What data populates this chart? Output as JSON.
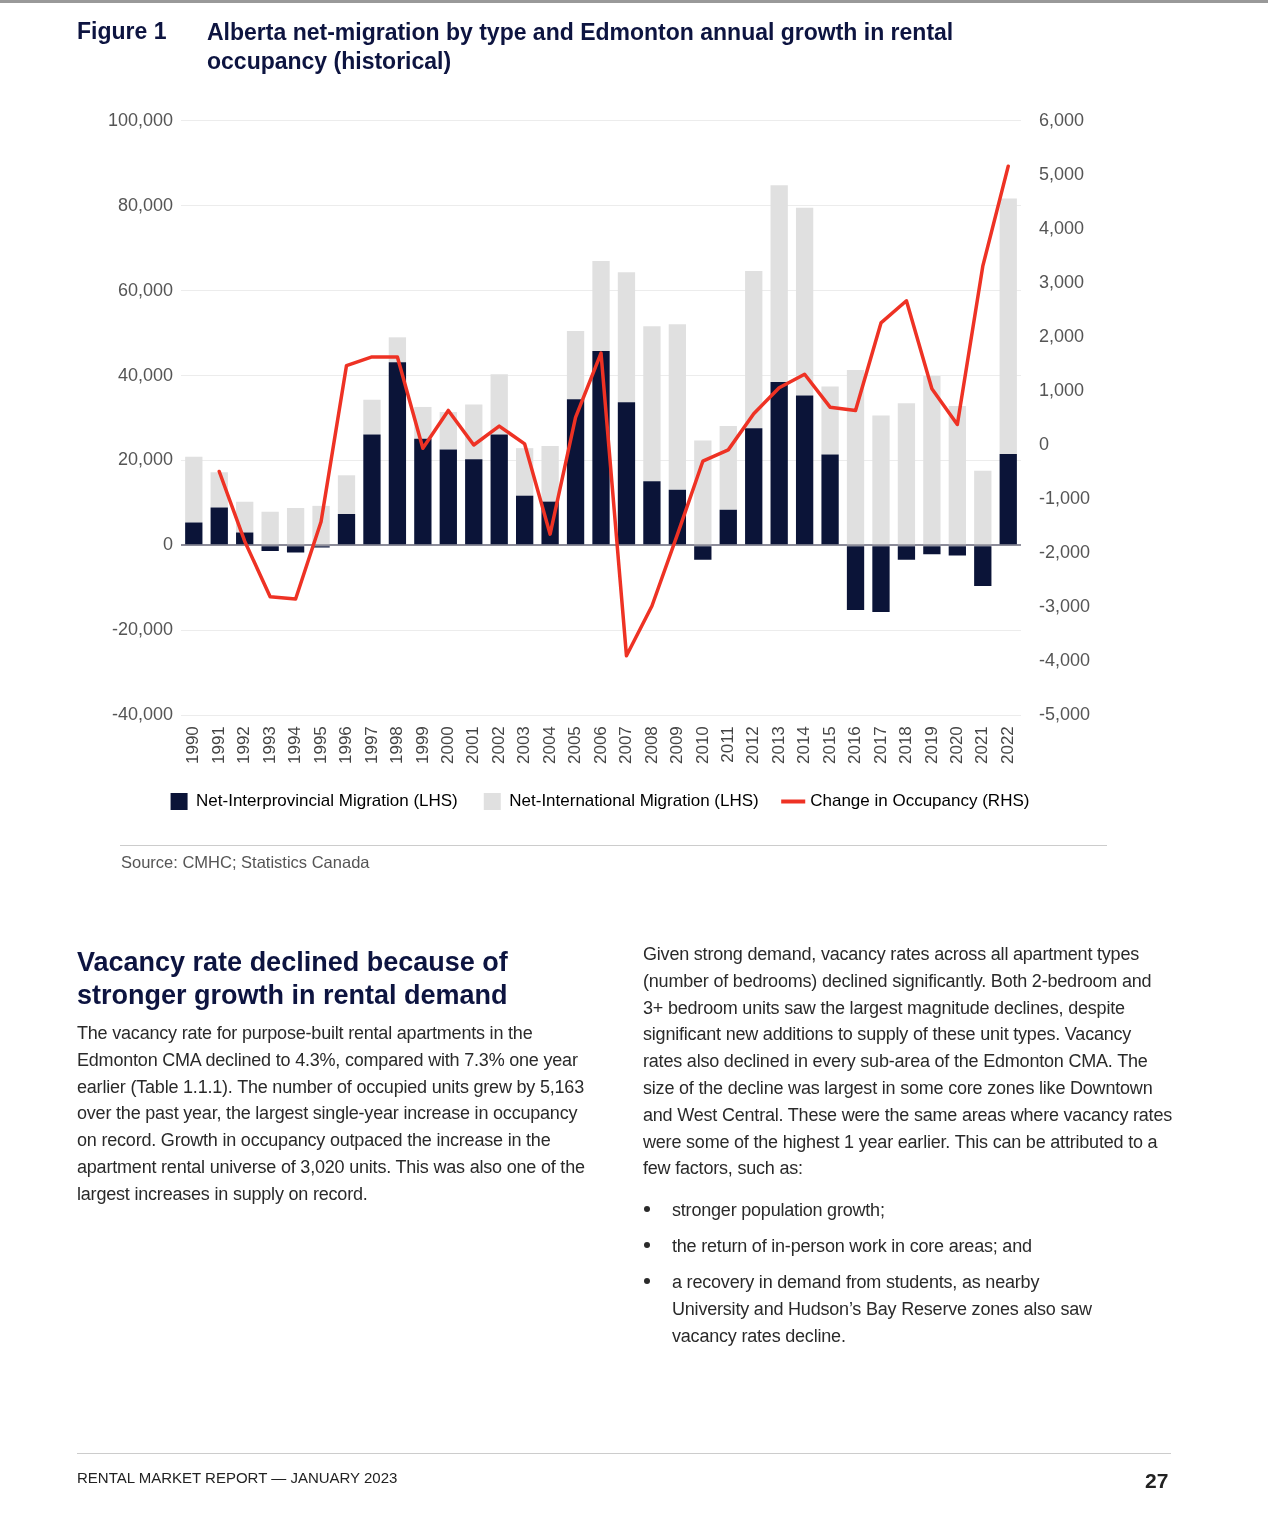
{
  "chart_data": {
    "type": "bar",
    "title": "Alberta net-migration by type and Edmonton annual growth in rental occupancy (historical)",
    "categories": [
      "1990",
      "1991",
      "1992",
      "1993",
      "1994",
      "1995",
      "1996",
      "1997",
      "1998",
      "1999",
      "2000",
      "2001",
      "2002",
      "2003",
      "2004",
      "2005",
      "2006",
      "2007",
      "2008",
      "2009",
      "2010",
      "2011",
      "2012",
      "2013",
      "2014",
      "2015",
      "2016",
      "2017",
      "2018",
      "2019",
      "2020",
      "2021",
      "2022"
    ],
    "stacked": true,
    "series": [
      {
        "name": "Net-Interprovincial Migration (LHS)",
        "color": "#0b1438",
        "values": [
          5400,
          8900,
          3000,
          -1300,
          -1700,
          -500,
          7400,
          26100,
          43100,
          25100,
          22600,
          20300,
          26100,
          11700,
          10300,
          34400,
          45800,
          33700,
          15100,
          13100,
          -3400,
          8400,
          27600,
          38500,
          35300,
          21400,
          -15200,
          -15700,
          -3400,
          -2100,
          -2400,
          -9600,
          21500
        ]
      },
      {
        "name": "Net-International Migration (LHS)",
        "color": "#e0e0e0",
        "values": [
          15500,
          8300,
          7300,
          7900,
          8800,
          9300,
          9100,
          8200,
          5900,
          7500,
          8800,
          12900,
          14200,
          11200,
          13100,
          16100,
          21200,
          30600,
          36500,
          39000,
          24700,
          19700,
          37000,
          46300,
          44200,
          16000,
          41300,
          30600,
          33500,
          39900,
          32800,
          17600,
          60200
        ]
      },
      {
        "name": "Change in Occupancy (RHS)",
        "type": "line",
        "axis": "y2",
        "color": "#ee3224",
        "values": [
          null,
          -490,
          -1780,
          -2810,
          -2850,
          -1420,
          1470,
          1630,
          1630,
          -60,
          640,
          0,
          350,
          20,
          -1650,
          510,
          1700,
          -3900,
          -2980,
          -1660,
          -300,
          -90,
          580,
          1060,
          1310,
          700,
          640,
          2260,
          2670,
          1040,
          380,
          3310,
          5160
        ]
      }
    ],
    "ylim": [
      -40000,
      100000
    ],
    "yticks": [
      {
        "value": -40000,
        "label": "-40,000"
      },
      {
        "value": -20000,
        "label": "-20,000"
      },
      0,
      {
        "value": 20000,
        "label": "20,000"
      },
      {
        "value": 40000,
        "label": "40,000"
      },
      {
        "value": 60000,
        "label": "60,000"
      },
      {
        "value": 80000,
        "label": "80,000"
      },
      {
        "value": 100000,
        "label": "100,000"
      }
    ],
    "y2lim": [
      -5000,
      6000
    ],
    "y2ticks": [
      {
        "value": -5000,
        "label": "-5,000"
      },
      {
        "value": -4000,
        "label": "-4,000"
      },
      {
        "value": -3000,
        "label": "-3,000"
      },
      {
        "value": -2000,
        "label": "-2,000"
      },
      {
        "value": -1000,
        "label": "-1,000"
      },
      0,
      {
        "value": 1000,
        "label": "1,000"
      },
      {
        "value": 2000,
        "label": "2,000"
      },
      {
        "value": 3000,
        "label": "3,000"
      },
      {
        "value": 4000,
        "label": "4,000"
      },
      {
        "value": 5000,
        "label": "5,000"
      },
      {
        "value": 6000,
        "label": "6,000"
      }
    ],
    "grid": "y",
    "legend": "bottom",
    "marker": "none",
    "line_style": "solid",
    "annotations": [
      "Figure 1",
      "Source: CMHC; Statistics Canada",
      "Vacancy rate declined because of stronger growth in rental demand",
      "The vacancy rate for purpose-built rental apartments in the Edmonton CMA declined to 4.3%, compared with 7.3% one year earlier (Table 1.1.1). The number of occupied units grew by 5,163 over the past year, the largest single-year increase in occupancy on record. Growth in occupancy outpaced the increase in the apartment rental universe of 3,020 units. This was also one of the largest increases in supply on record.",
      "Given strong demand, vacancy rates across all apartment types (number of bedrooms) declined significantly. Both 2-bedroom and 3+ bedroom units saw the largest magnitude declines, despite significant new additions to supply of these unit types. Vacancy rates also declined in every sub-area of the Edmonton CMA. The size of the decline was largest in some core zones like Downtown and West Central. These were the same areas where vacancy rates were some of the highest 1 year earlier. This can be attributed to a few factors, such as:",
      "stronger population growth;",
      "the return of in-person work in core areas; and",
      "a recovery in demand from students, as nearby University and Hudson’s Bay Reserve zones also saw vacancy rates decline.",
      "RENTAL MARKET REPORT — JANUARY 2023",
      "27"
    ]
  }
}
